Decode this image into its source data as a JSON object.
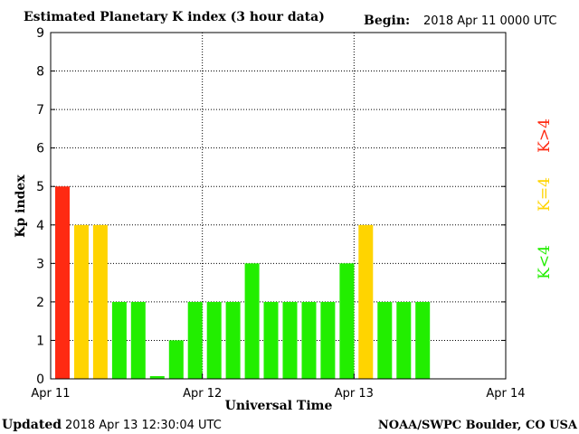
{
  "header": {
    "title": "Estimated Planetary K index (3 hour data)",
    "begin_label": "Begin:",
    "begin_value": "2018 Apr 11 0000 UTC"
  },
  "footer": {
    "updated_label": "Updated",
    "updated_value": "2018 Apr 13 12:30:04 UTC",
    "source": "NOAA/SWPC Boulder, CO USA"
  },
  "legend": {
    "high": "K>4",
    "mid": "K=4",
    "low": "K<4"
  },
  "colors": {
    "low": "#22ee00",
    "mid": "#ffd400",
    "high": "#ff2a12",
    "axis": "#000000",
    "grid": "#000000",
    "background": "#ffffff"
  },
  "chart_data": {
    "type": "bar",
    "title": "Estimated Planetary K index (3 hour data)",
    "xlabel": "Universal Time",
    "ylabel": "Kp index",
    "ylim": [
      0,
      9
    ],
    "yticks": [
      0,
      1,
      2,
      3,
      4,
      5,
      6,
      7,
      8,
      9
    ],
    "xticks": [
      "Apr 11",
      "Apr 12",
      "Apr 13",
      "Apr 14"
    ],
    "grid": true,
    "legend_position": "right",
    "interval_hours": 3,
    "start": "2018 Apr 11 0000 UTC",
    "values": [
      5,
      4,
      4,
      2,
      2,
      0.07,
      1,
      2,
      2,
      2,
      3,
      2,
      2,
      2,
      2,
      3,
      4,
      2,
      2,
      2
    ]
  }
}
